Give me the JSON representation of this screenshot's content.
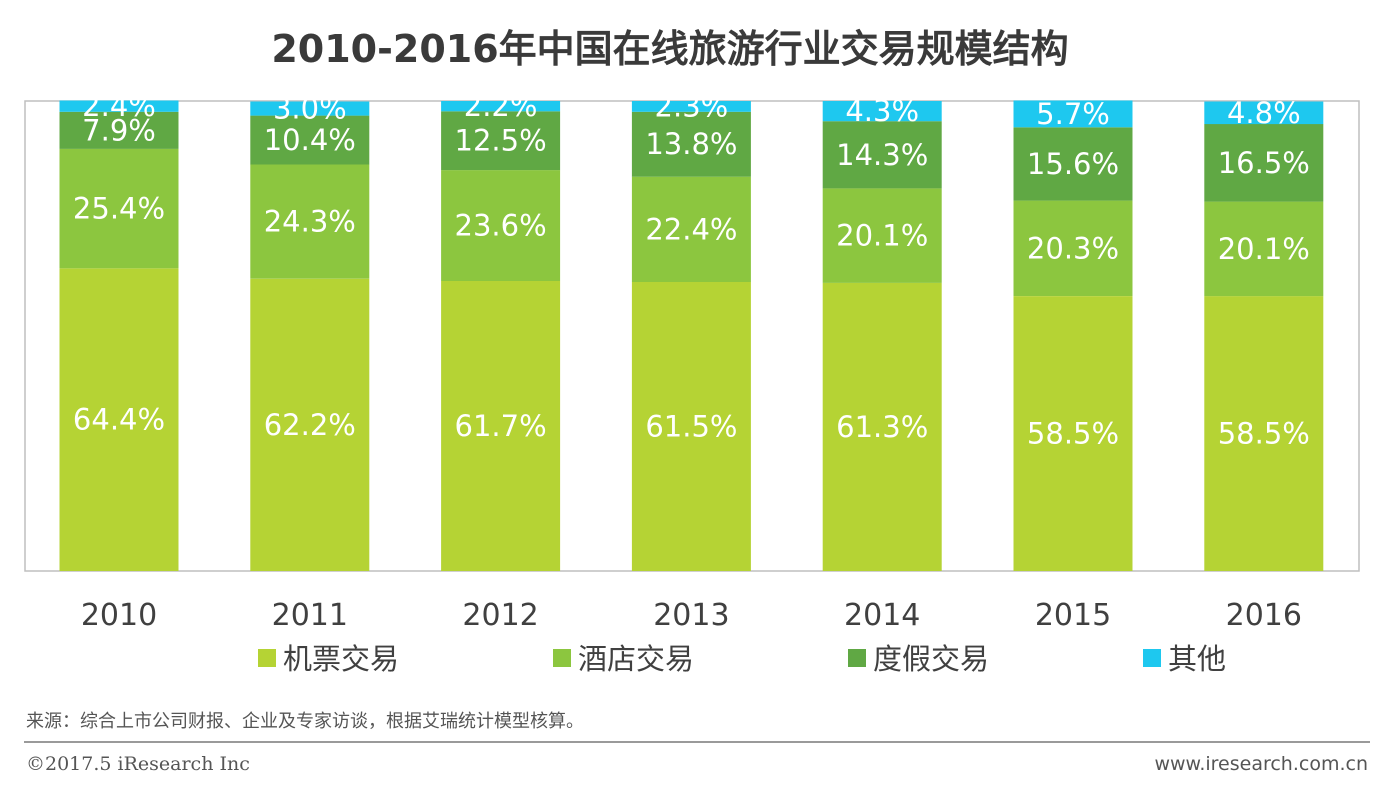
{
  "footer": {
    "source": "来源：综合上市公司财报、企业及专家访谈，根据艾瑞统计模型核算。",
    "copyright": "©2017.5 iResearch Inc",
    "website": "www.iresearch.com.cn"
  },
  "chart_data": {
    "type": "bar",
    "stacked": true,
    "title": "2010-2016年中国在线旅游行业交易规模结构",
    "xlabel": "",
    "ylabel": "",
    "ylim": [
      0,
      100
    ],
    "grid": false,
    "legend_position": "bottom",
    "categories": [
      "2010",
      "2011",
      "2012",
      "2013",
      "2014",
      "2015",
      "2016"
    ],
    "series": [
      {
        "name": "机票交易",
        "color": "#b5d334",
        "values": [
          64.4,
          62.2,
          61.7,
          61.5,
          61.3,
          58.5,
          58.5
        ],
        "labels": [
          "64.4%",
          "62.2%",
          "61.7%",
          "61.5%",
          "61.3%",
          "58.5%",
          "58.5%"
        ]
      },
      {
        "name": "酒店交易",
        "color": "#8cc63f",
        "values": [
          25.4,
          24.3,
          23.6,
          22.4,
          20.1,
          20.3,
          20.1
        ],
        "labels": [
          "25.4%",
          "24.3%",
          "23.6%",
          "22.4%",
          "20.1%",
          "20.3%",
          "20.1%"
        ]
      },
      {
        "name": "度假交易",
        "color": "#60a844",
        "values": [
          7.9,
          10.4,
          12.5,
          13.8,
          14.3,
          15.6,
          16.5
        ],
        "labels": [
          "7.9%",
          "10.4%",
          "12.5%",
          "13.8%",
          "14.3%",
          "15.6%",
          "16.5%"
        ]
      },
      {
        "name": "其他",
        "color": "#1ec8ef",
        "values": [
          2.4,
          3.0,
          2.2,
          2.3,
          4.3,
          5.7,
          4.8
        ],
        "labels": [
          "2.4%",
          "3.0%",
          "2.2%",
          "2.3%",
          "4.3%",
          "5.7%",
          "4.8%"
        ]
      }
    ]
  }
}
